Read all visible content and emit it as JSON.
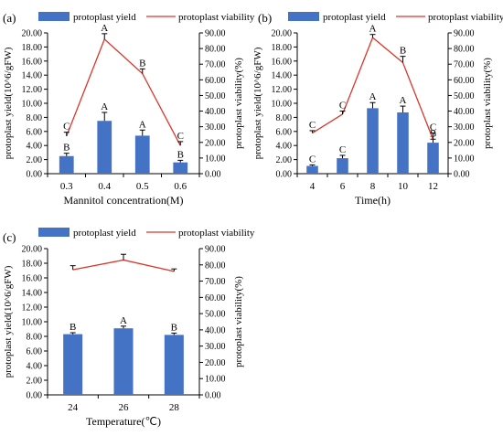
{
  "figure": {
    "panels": [
      {
        "panel_label": "(a)"
      },
      {
        "panel_label": "(b)"
      },
      {
        "panel_label": "(c)"
      }
    ]
  },
  "chart_data": [
    {
      "type": "bar",
      "panel": "(a)",
      "xlabel": "Mannitol concentration(M)",
      "ylabel": "protoplast yield(10^6/gFW)",
      "y2label": "protoplast viability(%)",
      "categories": [
        "0.3",
        "0.4",
        "0.5",
        "0.6"
      ],
      "ylim": [
        0,
        20
      ],
      "y_ticks": [
        "0.00",
        "2.00",
        "4.00",
        "6.00",
        "8.00",
        "10.00",
        "12.00",
        "14.00",
        "16.00",
        "18.00",
        "20.00"
      ],
      "y2lim": [
        0,
        90
      ],
      "y2_ticks": [
        "0.00",
        "10.00",
        "20.00",
        "30.00",
        "40.00",
        "50.00",
        "60.00",
        "70.00",
        "80.00",
        "90.00"
      ],
      "legend_position": "top",
      "series": [
        {
          "name": "protoplast yield",
          "kind": "bar",
          "axis": "left",
          "color": "#4472C4",
          "values": [
            2.5,
            7.5,
            5.4,
            1.6
          ],
          "errors": [
            0.4,
            1.2,
            0.8,
            0.3
          ],
          "letters": [
            "B",
            "A",
            "A",
            "B"
          ]
        },
        {
          "name": "protoplast viability",
          "kind": "line",
          "axis": "right",
          "color": "#D9362B",
          "values": [
            24,
            86,
            64,
            18
          ],
          "errors": [
            2.5,
            3.5,
            3,
            2.5
          ],
          "letters": [
            "C",
            "A",
            "B",
            "C"
          ]
        }
      ]
    },
    {
      "type": "bar",
      "panel": "(b)",
      "xlabel": "Time(h)",
      "ylabel": "protoplast yield(10^6/gFW)",
      "y2label": "protoplast viability(%)",
      "categories": [
        "4",
        "6",
        "8",
        "10",
        "12"
      ],
      "ylim": [
        0,
        20
      ],
      "y_ticks": [
        "0.00",
        "2.00",
        "4.00",
        "6.00",
        "8.00",
        "10.00",
        "12.00",
        "14.00",
        "16.00",
        "18.00",
        "20.00"
      ],
      "y2lim": [
        0,
        90
      ],
      "y2_ticks": [
        "0.00",
        "10.00",
        "20.00",
        "30.00",
        "40.00",
        "50.00",
        "60.00",
        "70.00",
        "80.00",
        "90.00"
      ],
      "legend_position": "top",
      "series": [
        {
          "name": "protoplast yield",
          "kind": "bar",
          "axis": "left",
          "color": "#4472C4",
          "values": [
            1.1,
            2.2,
            9.3,
            8.7,
            4.4
          ],
          "errors": [
            0.15,
            0.4,
            0.8,
            0.9,
            0.5
          ],
          "letters": [
            "C",
            "C",
            "A",
            "A",
            "B"
          ]
        },
        {
          "name": "protoplast viability",
          "kind": "line",
          "axis": "right",
          "color": "#D9362B",
          "values": [
            26,
            38,
            87,
            71,
            22
          ],
          "errors": [
            1.5,
            2,
            2,
            4,
            4
          ],
          "letters": [
            "C",
            "C",
            "A",
            "B",
            "C"
          ]
        }
      ]
    },
    {
      "type": "bar",
      "panel": "(c)",
      "xlabel": "Temperature(℃)",
      "ylabel": "protoplast yield(10^6/gFW)",
      "y2label": "protoplast viability(%)",
      "categories": [
        "24",
        "26",
        "28"
      ],
      "ylim": [
        0,
        20
      ],
      "y_ticks": [
        "0.00",
        "2.00",
        "4.00",
        "6.00",
        "8.00",
        "10.00",
        "12.00",
        "14.00",
        "16.00",
        "18.00",
        "20.00"
      ],
      "y2lim": [
        0,
        90
      ],
      "y2_ticks": [
        "0.00",
        "10.00",
        "20.00",
        "30.00",
        "40.00",
        "50.00",
        "60.00",
        "70.00",
        "80.00",
        "90.00"
      ],
      "legend_position": "top",
      "series": [
        {
          "name": "protoplast yield",
          "kind": "bar",
          "axis": "left",
          "color": "#4472C4",
          "values": [
            8.3,
            9.1,
            8.2
          ],
          "errors": [
            0.2,
            0.3,
            0.25
          ],
          "letters": [
            "B",
            "A",
            "B"
          ]
        },
        {
          "name": "protoplast viability",
          "kind": "line",
          "axis": "right",
          "color": "#D9362B",
          "values": [
            77,
            83,
            76
          ],
          "errors": [
            2.5,
            3.5,
            1.5
          ],
          "letters": [
            "",
            "",
            ""
          ]
        }
      ]
    }
  ]
}
